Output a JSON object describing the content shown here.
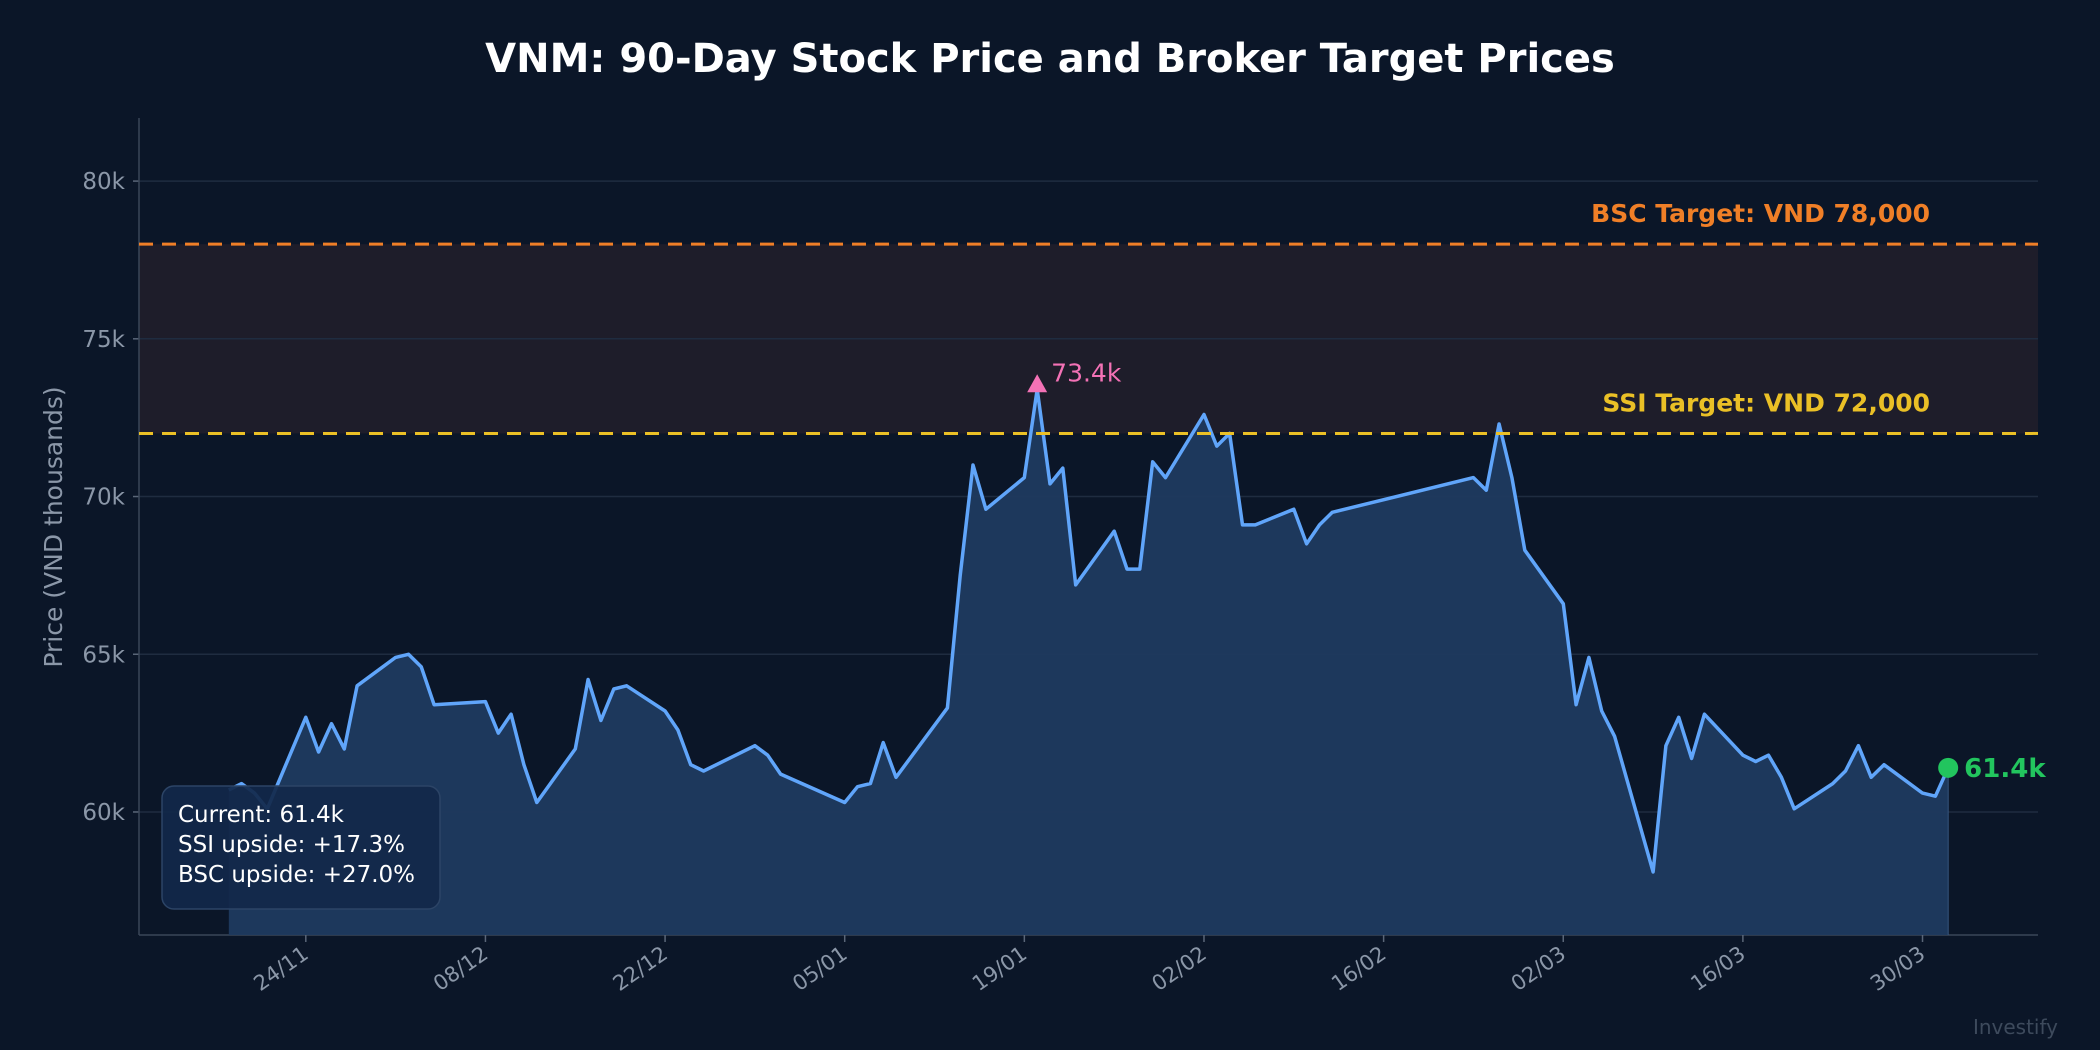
{
  "chart_data": {
    "type": "area",
    "title": "VNM: 90-Day Stock Price and Broker Target Prices",
    "ylabel": "Price (VND thousands)",
    "xlabel": "",
    "ylim": [
      56.1,
      82.0
    ],
    "xlim": [
      "11/11",
      "08/04"
    ],
    "yticks": [
      60,
      65,
      70,
      75,
      80
    ],
    "ytick_labels": [
      "60k",
      "65k",
      "70k",
      "75k",
      "80k"
    ],
    "xtick_labels": [
      "24/11",
      "08/12",
      "22/12",
      "05/01",
      "19/01",
      "02/02",
      "16/02",
      "02/03",
      "16/03",
      "30/03"
    ],
    "grid": true,
    "colors": {
      "background": "#0b1628",
      "line": "#60a5fa",
      "fill": "#1f3a5f",
      "band": "#1e1d2a",
      "ssi": "#eac026",
      "bsc": "#f07f27",
      "peak": "#f472b6",
      "current": "#22c55e"
    },
    "series": [
      {
        "dates": [
          "18/11",
          "19/11",
          "20/11",
          "21/11",
          "24/11",
          "25/11",
          "26/11",
          "27/11",
          "28/11",
          "01/12",
          "02/12",
          "03/12",
          "04/12",
          "08/12",
          "09/12",
          "10/12",
          "11/12",
          "12/12",
          "15/12",
          "16/12",
          "17/12",
          "18/12",
          "19/12",
          "22/12",
          "23/12",
          "24/12",
          "25/12",
          "29/12",
          "30/12",
          "31/12",
          "05/01",
          "06/01",
          "07/01",
          "08/01",
          "09/01",
          "13/01",
          "14/01",
          "15/01",
          "16/01",
          "19/01",
          "20/01",
          "21/01",
          "22/01",
          "23/01",
          "26/01",
          "27/01",
          "28/01",
          "29/01",
          "30/01",
          "02/02",
          "03/02",
          "04/02",
          "05/02",
          "06/02",
          "09/02",
          "10/02",
          "11/02",
          "12/02",
          "23/02",
          "24/02",
          "25/02",
          "26/02",
          "27/02",
          "02/03",
          "03/03",
          "04/03",
          "05/03",
          "06/03",
          "09/03",
          "10/03",
          "11/03",
          "12/03",
          "13/03",
          "16/03",
          "17/03",
          "18/03",
          "19/03",
          "20/03",
          "23/03",
          "24/03",
          "25/03",
          "26/03",
          "27/03",
          "30/03",
          "31/03",
          "01/04"
        ],
        "values": [
          60.7,
          60.9,
          60.6,
          60.1,
          63.0,
          61.9,
          62.8,
          62.0,
          64.0,
          64.9,
          65.0,
          64.6,
          63.4,
          63.5,
          62.5,
          63.1,
          61.5,
          60.3,
          62.0,
          64.2,
          62.9,
          63.9,
          64.0,
          63.2,
          62.6,
          61.5,
          61.3,
          62.1,
          61.8,
          61.2,
          60.3,
          60.8,
          60.9,
          62.2,
          61.1,
          63.3,
          67.5,
          71.0,
          69.6,
          70.6,
          73.4,
          70.4,
          70.9,
          67.2,
          68.9,
          67.7,
          67.7,
          71.1,
          70.6,
          72.6,
          71.6,
          72.0,
          69.1,
          69.1,
          69.6,
          68.5,
          69.1,
          69.5,
          70.6,
          70.2,
          72.3,
          70.6,
          68.3,
          66.6,
          63.4,
          64.9,
          63.2,
          62.4,
          58.1,
          62.1,
          63.0,
          61.7,
          63.1,
          61.8,
          61.6,
          61.8,
          61.1,
          60.1,
          60.9,
          61.3,
          62.1,
          61.1,
          61.5,
          60.6,
          60.5,
          61.4
        ]
      }
    ],
    "targets": [
      {
        "broker": "SSI",
        "value": 72,
        "label": "SSI Target: VND 72,000"
      },
      {
        "broker": "BSC",
        "value": 78,
        "label": "BSC Target: VND 78,000"
      }
    ],
    "peak": {
      "date": "20/01",
      "value": 73.4,
      "label": "73.4k"
    },
    "current": {
      "date": "01/04",
      "value": 61.4,
      "label": "61.4k"
    },
    "summary_box": [
      "Current: 61.4k",
      "SSI upside: +17.3%",
      "BSC upside: +27.0%"
    ],
    "watermark": "Investify"
  }
}
